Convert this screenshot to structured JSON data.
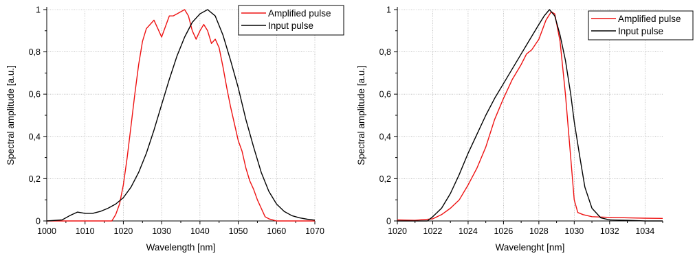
{
  "chart_data": [
    {
      "type": "line",
      "xlabel": "Wavelength [nm]",
      "ylabel": "Spectral amplitude [a.u.]",
      "xlim": [
        1000,
        1070
      ],
      "ylim": [
        0,
        1
      ],
      "x_ticks": [
        "1000",
        "1010",
        "1020",
        "1030",
        "1040",
        "1050",
        "1060",
        "1070"
      ],
      "y_ticks": [
        "0",
        "0,2",
        "0,4",
        "0,6",
        "0,8",
        "1"
      ],
      "grid": true,
      "legend_position": "top-right",
      "series": [
        {
          "name": "Amplified pulse",
          "color": "#ee1111",
          "x": [
            1000,
            1010,
            1017,
            1018,
            1019,
            1020,
            1021,
            1022,
            1023,
            1024,
            1025,
            1026,
            1027,
            1028,
            1029,
            1030,
            1031,
            1032,
            1033,
            1034,
            1035,
            1036,
            1037,
            1038,
            1039,
            1040,
            1041,
            1042,
            1043,
            1044,
            1045,
            1046,
            1047,
            1048,
            1049,
            1050,
            1051,
            1052,
            1053,
            1054,
            1055,
            1056,
            1057,
            1058,
            1060,
            1070
          ],
          "y": [
            0,
            0,
            0,
            0.03,
            0.08,
            0.17,
            0.3,
            0.45,
            0.6,
            0.74,
            0.85,
            0.91,
            0.93,
            0.95,
            0.91,
            0.87,
            0.92,
            0.97,
            0.97,
            0.98,
            0.99,
            1.0,
            0.97,
            0.9,
            0.86,
            0.9,
            0.93,
            0.9,
            0.84,
            0.86,
            0.82,
            0.73,
            0.63,
            0.54,
            0.46,
            0.38,
            0.33,
            0.25,
            0.19,
            0.15,
            0.1,
            0.06,
            0.02,
            0.01,
            0,
            0
          ]
        },
        {
          "name": "Input pulse",
          "color": "#000000",
          "x": [
            1000,
            1004,
            1006,
            1008,
            1010,
            1012,
            1014,
            1016,
            1018,
            1020,
            1022,
            1024,
            1026,
            1028,
            1030,
            1032,
            1034,
            1036,
            1038,
            1040,
            1042,
            1044,
            1046,
            1048,
            1050,
            1052,
            1054,
            1056,
            1058,
            1060,
            1062,
            1064,
            1066,
            1068,
            1070
          ],
          "y": [
            0,
            0.005,
            0.025,
            0.042,
            0.036,
            0.036,
            0.045,
            0.06,
            0.08,
            0.11,
            0.16,
            0.23,
            0.32,
            0.43,
            0.55,
            0.67,
            0.78,
            0.87,
            0.94,
            0.98,
            1.0,
            0.97,
            0.88,
            0.76,
            0.63,
            0.48,
            0.35,
            0.23,
            0.14,
            0.08,
            0.045,
            0.025,
            0.015,
            0.008,
            0.004
          ]
        }
      ]
    },
    {
      "type": "line",
      "xlabel": "Wavelenght [nm]",
      "ylabel": "Spectral amplitude [a.u.]",
      "xlim": [
        1020,
        1035
      ],
      "ylim": [
        0,
        1
      ],
      "x_ticks": [
        "1020",
        "1022",
        "1024",
        "1026",
        "1028",
        "1030",
        "1032",
        "1034"
      ],
      "y_ticks": [
        "0",
        "0,2",
        "0,4",
        "0,6",
        "0,8",
        "1"
      ],
      "grid": true,
      "legend_position": "top-right",
      "series": [
        {
          "name": "Amplified pulse",
          "color": "#ee1111",
          "x": [
            1020,
            1021,
            1022,
            1022.5,
            1023,
            1023.5,
            1024,
            1024.5,
            1025,
            1025.5,
            1026,
            1026.5,
            1027,
            1027.3,
            1027.6,
            1028,
            1028.4,
            1028.7,
            1028.9,
            1029.2,
            1029.5,
            1029.8,
            1030,
            1030.2,
            1030.5,
            1031,
            1032,
            1033,
            1034,
            1035
          ],
          "y": [
            0.005,
            0.003,
            0.01,
            0.03,
            0.06,
            0.1,
            0.17,
            0.25,
            0.35,
            0.48,
            0.58,
            0.67,
            0.74,
            0.79,
            0.81,
            0.86,
            0.95,
            0.99,
            0.98,
            0.85,
            0.6,
            0.3,
            0.1,
            0.04,
            0.03,
            0.02,
            0.017,
            0.015,
            0.013,
            0.012
          ]
        },
        {
          "name": "Input pulse",
          "color": "#000000",
          "x": [
            1020,
            1021,
            1021.7,
            1022,
            1022.5,
            1023,
            1023.5,
            1024,
            1024.5,
            1025,
            1025.5,
            1026,
            1026.5,
            1027,
            1027.5,
            1028,
            1028.3,
            1028.6,
            1028.9,
            1029.2,
            1029.5,
            1029.8,
            1030,
            1030.3,
            1030.6,
            1031,
            1031.5,
            1032,
            1033,
            1034,
            1035
          ],
          "y": [
            0,
            0,
            0,
            0.02,
            0.06,
            0.13,
            0.22,
            0.32,
            0.41,
            0.5,
            0.58,
            0.65,
            0.72,
            0.79,
            0.86,
            0.93,
            0.97,
            1.0,
            0.97,
            0.88,
            0.76,
            0.6,
            0.47,
            0.31,
            0.16,
            0.06,
            0.015,
            0.005,
            0.003,
            0,
            0
          ]
        }
      ]
    }
  ]
}
